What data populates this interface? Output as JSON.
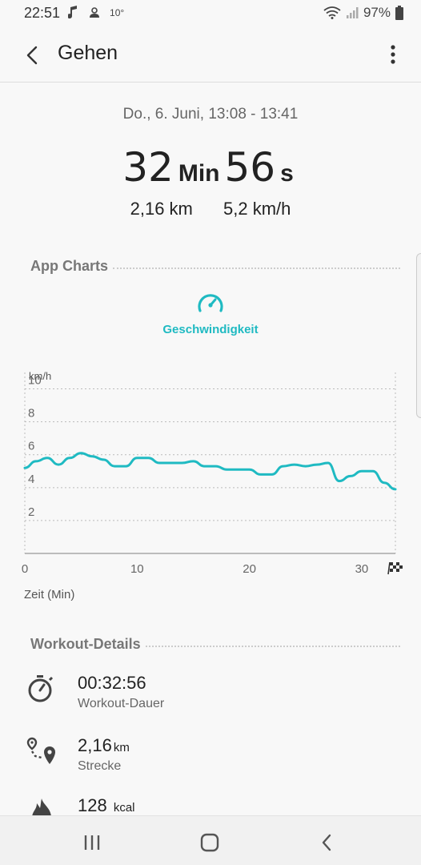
{
  "status_bar": {
    "time": "22:51",
    "weather_temp": "10°",
    "battery": "97%",
    "icons": [
      "music-note-icon",
      "weather-icon",
      "wifi-icon",
      "signal-icon",
      "battery-icon"
    ]
  },
  "app_bar": {
    "title": "Gehen",
    "back_icon": "back-arrow-icon",
    "more_icon": "more-vert-icon"
  },
  "summary": {
    "date_range": "Do., 6. Juni, 13:08 - 13:41",
    "duration_min": "32",
    "duration_min_unit": "Min",
    "duration_sec": "56",
    "duration_sec_unit": "s",
    "distance": "2,16 km",
    "speed": "5,2 km/h"
  },
  "charts_section": {
    "header": "App Charts",
    "tab_label": "Geschwindigkeit",
    "tab_icon": "speedometer-icon",
    "accent_color": "#1fbac2"
  },
  "chart_data": {
    "type": "line",
    "ylabel": "km/h",
    "xlabel": "Zeit (Min)",
    "ylim": [
      0,
      11
    ],
    "xlim": [
      0,
      33
    ],
    "yticks": [
      "2",
      "4",
      "6",
      "8",
      "10"
    ],
    "xticks": [
      "0",
      "10",
      "20",
      "30"
    ],
    "finish_icon": "finish-flag-icon",
    "grid": true,
    "color": "#1fbac2",
    "x": [
      0,
      1,
      2,
      3,
      4,
      5,
      6,
      7,
      8,
      9,
      10,
      11,
      12,
      13,
      14,
      15,
      16,
      17,
      18,
      19,
      20,
      21,
      22,
      23,
      24,
      25,
      26,
      27,
      28,
      29,
      30,
      31,
      32,
      33
    ],
    "y": [
      5.2,
      5.6,
      5.8,
      5.4,
      5.8,
      6.1,
      5.9,
      5.7,
      5.3,
      5.3,
      5.8,
      5.8,
      5.5,
      5.5,
      5.5,
      5.6,
      5.3,
      5.3,
      5.1,
      5.1,
      5.1,
      4.8,
      4.8,
      5.3,
      5.4,
      5.3,
      5.4,
      5.5,
      4.4,
      4.7,
      5.0,
      5.0,
      4.3,
      3.9
    ]
  },
  "details_section": {
    "header": "Workout-Details",
    "items": [
      {
        "value": "00:32:56",
        "unit": "",
        "label": "Workout-Dauer",
        "icon": "stopwatch-icon"
      },
      {
        "value": "2,16",
        "unit": "km",
        "label": "Strecke",
        "icon": "route-icon"
      },
      {
        "value": "128",
        "unit": "kcal",
        "label": "",
        "icon": "flame-icon"
      }
    ]
  },
  "nav_bar": {
    "icons": [
      "recent-apps-icon",
      "home-icon",
      "back-icon"
    ]
  }
}
